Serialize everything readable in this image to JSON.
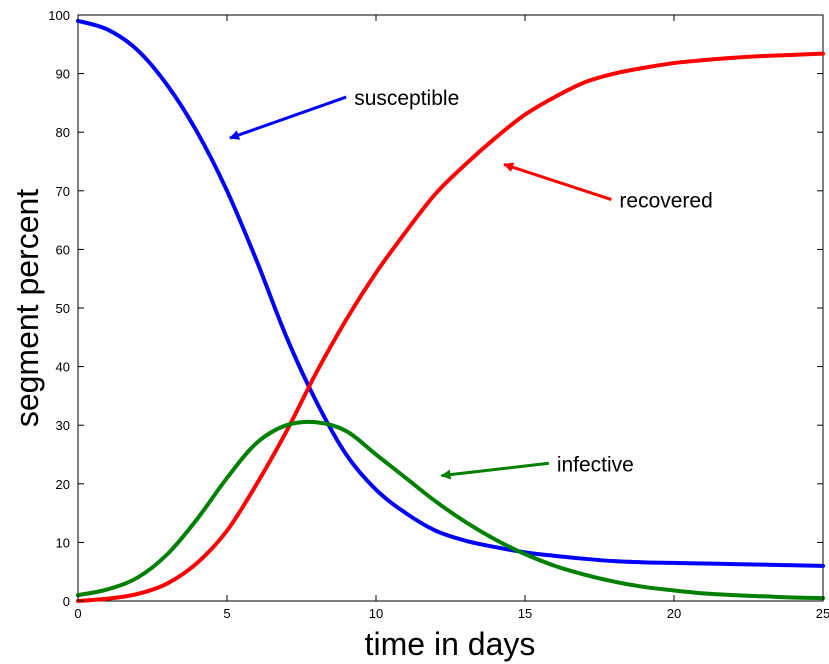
{
  "chart_data": {
    "type": "line",
    "title": "",
    "xlabel": "time in days",
    "ylabel": "segment percent",
    "xlim": [
      0,
      25
    ],
    "ylim": [
      0,
      100
    ],
    "xticks": [
      0,
      5,
      10,
      15,
      20,
      25
    ],
    "yticks": [
      0,
      10,
      20,
      30,
      40,
      50,
      60,
      70,
      80,
      90,
      100
    ],
    "grid": false,
    "legend": "none",
    "x": [
      0,
      1,
      2,
      3,
      4,
      5,
      6,
      7,
      8,
      9,
      10,
      11,
      12,
      13,
      14,
      15,
      16,
      17,
      18,
      19,
      20,
      21,
      22,
      23,
      24,
      25
    ],
    "series": [
      {
        "name": "susceptible",
        "color": "#0000ff",
        "values": [
          99,
          97.5,
          94,
          88,
          80,
          70,
          58,
          45,
          34,
          25,
          19,
          15,
          12,
          10.3,
          9.2,
          8.3,
          7.7,
          7.2,
          6.8,
          6.6,
          6.5,
          6.4,
          6.3,
          6.2,
          6.1,
          6.0
        ]
      },
      {
        "name": "recovered",
        "color": "#ff0000",
        "values": [
          0,
          0.4,
          1.2,
          3,
          6.5,
          12,
          20,
          29,
          39,
          48,
          56,
          63,
          69.5,
          74.5,
          79,
          83,
          86,
          88.5,
          90,
          91,
          91.8,
          92.3,
          92.7,
          93,
          93.2,
          93.4
        ]
      },
      {
        "name": "infective",
        "color": "#008000",
        "values": [
          1,
          2,
          4,
          8,
          14,
          21,
          27,
          30,
          30.5,
          29,
          25,
          21,
          17,
          13.5,
          10.5,
          8,
          6,
          4.5,
          3.3,
          2.4,
          1.8,
          1.3,
          1.0,
          0.8,
          0.6,
          0.5
        ]
      }
    ],
    "annotations": [
      {
        "text": "susceptible",
        "series": "susceptible",
        "color": "#0000ff",
        "arrow_from": [
          9,
          86
        ],
        "arrow_to": [
          5.1,
          79
        ]
      },
      {
        "text": "recovered",
        "series": "recovered",
        "color": "#ff0000",
        "arrow_from": [
          17.9,
          68.5
        ],
        "arrow_to": [
          14.3,
          74.5
        ]
      },
      {
        "text": "infective",
        "series": "infective",
        "color": "#008000",
        "arrow_from": [
          15.8,
          23.5
        ],
        "arrow_to": [
          12.2,
          21.4
        ]
      }
    ]
  }
}
